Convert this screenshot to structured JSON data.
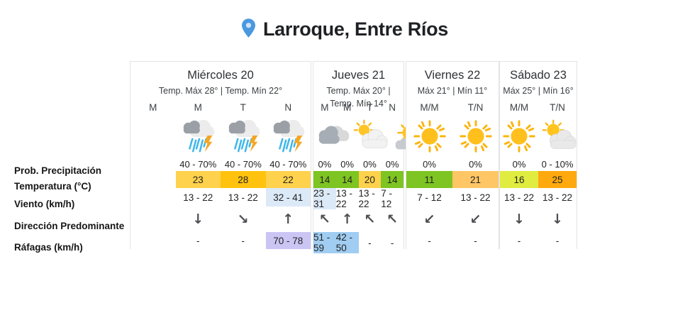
{
  "header": {
    "location_label": "Larroque, Entre Ríos",
    "pin_icon": "location-pin-icon",
    "pin_color": "#4a98e0"
  },
  "row_labels": [
    "Prob. Precipitación",
    "Temperatura (°C)",
    "Viento (km/h)",
    "Dirección Predominante",
    "Ráfagas (km/h)"
  ],
  "highlight_colors": {
    "wind_blue": "#dce9f7",
    "gusts_blue": "#a0cdf1",
    "gusts_lavender": "#cbc5f4"
  },
  "direction_glyphs": {
    "down": "↓",
    "down-right": "↘",
    "up": "↑",
    "up-left": "↖",
    "down-left": "↙"
  },
  "days": [
    {
      "name": "Miércoles 20",
      "temp_summary": "Temp. Máx 28° | Temp. Mín 22°",
      "periods": [
        "M",
        "M",
        "T",
        "N"
      ],
      "cells": [
        {
          "icon": null,
          "precip": "",
          "temp": "",
          "temp_color": "",
          "wind": "",
          "wind_bg": "",
          "dir": null,
          "gusts": "",
          "gusts_bg": ""
        },
        {
          "icon": "storm",
          "precip": "40 - 70%",
          "temp": "23",
          "temp_color": "#ffd24d",
          "wind": "13 - 22",
          "wind_bg": "",
          "dir": "down",
          "gusts": "-",
          "gusts_bg": ""
        },
        {
          "icon": "storm",
          "precip": "40 - 70%",
          "temp": "28",
          "temp_color": "#ffc30f",
          "wind": "13 - 22",
          "wind_bg": "",
          "dir": "down-right",
          "gusts": "-",
          "gusts_bg": ""
        },
        {
          "icon": "storm",
          "precip": "40 - 70%",
          "temp": "22",
          "temp_color": "#ffd24d",
          "wind": "32 - 41",
          "wind_bg": "#dce9f7",
          "dir": "up",
          "gusts": "70 - 78",
          "gusts_bg": "#cbc5f4"
        }
      ]
    },
    {
      "name": "Jueves 21",
      "temp_summary": "Temp. Máx 20° | Temp. Mín 14°",
      "periods": [
        "M",
        "M",
        "T",
        "N"
      ],
      "cells": [
        {
          "icon": "cloudy",
          "precip": "0%",
          "temp": "14",
          "temp_color": "#7ec422",
          "wind": "23 - 31",
          "wind_bg": "#dce9f7",
          "dir": "up-left",
          "gusts": "51 - 59",
          "gusts_bg": "#a0cdf1"
        },
        {
          "icon": "partly-cloudy",
          "precip": "0%",
          "temp": "14",
          "temp_color": "#7ec422",
          "wind": "13 - 22",
          "wind_bg": "",
          "dir": "up",
          "gusts": "42 - 50",
          "gusts_bg": "#a0cdf1"
        },
        {
          "icon": "sun-small-clouds",
          "precip": "0%",
          "temp": "20",
          "temp_color": "#ffd24d",
          "wind": "13 - 22",
          "wind_bg": "",
          "dir": "up-left",
          "gusts": "-",
          "gusts_bg": ""
        },
        {
          "icon": "night-cloudy",
          "precip": "0%",
          "temp": "14",
          "temp_color": "#7ec422",
          "wind": "7 - 12",
          "wind_bg": "",
          "dir": "up-left",
          "gusts": "-",
          "gusts_bg": ""
        }
      ]
    },
    {
      "name": "Viernes 22",
      "temp_summary": "Máx 21° | Mín 11°",
      "periods": [
        "M/M",
        "T/N"
      ],
      "cells": [
        {
          "icon": "sunny",
          "precip": "0%",
          "temp": "11",
          "temp_color": "#7ec422",
          "wind": "7 - 12",
          "wind_bg": "",
          "dir": "down-left",
          "gusts": "-",
          "gusts_bg": ""
        },
        {
          "icon": "sunny",
          "precip": "0%",
          "temp": "21",
          "temp_color": "#ffc666",
          "wind": "13 - 22",
          "wind_bg": "",
          "dir": "down-left",
          "gusts": "-",
          "gusts_bg": ""
        }
      ]
    },
    {
      "name": "Sábado 23",
      "temp_summary": "Máx 25° | Mín 16°",
      "periods": [
        "M/M",
        "T/N"
      ],
      "cells": [
        {
          "icon": "sunny",
          "precip": "0%",
          "temp": "16",
          "temp_color": "#e0ec40",
          "wind": "13 - 22",
          "wind_bg": "",
          "dir": "down",
          "gusts": "-",
          "gusts_bg": ""
        },
        {
          "icon": "sun-behind-cloud",
          "precip": "0 - 10%",
          "temp": "25",
          "temp_color": "#ffa90e",
          "wind": "13 - 22",
          "wind_bg": "",
          "dir": "down",
          "gusts": "-",
          "gusts_bg": ""
        }
      ]
    }
  ]
}
